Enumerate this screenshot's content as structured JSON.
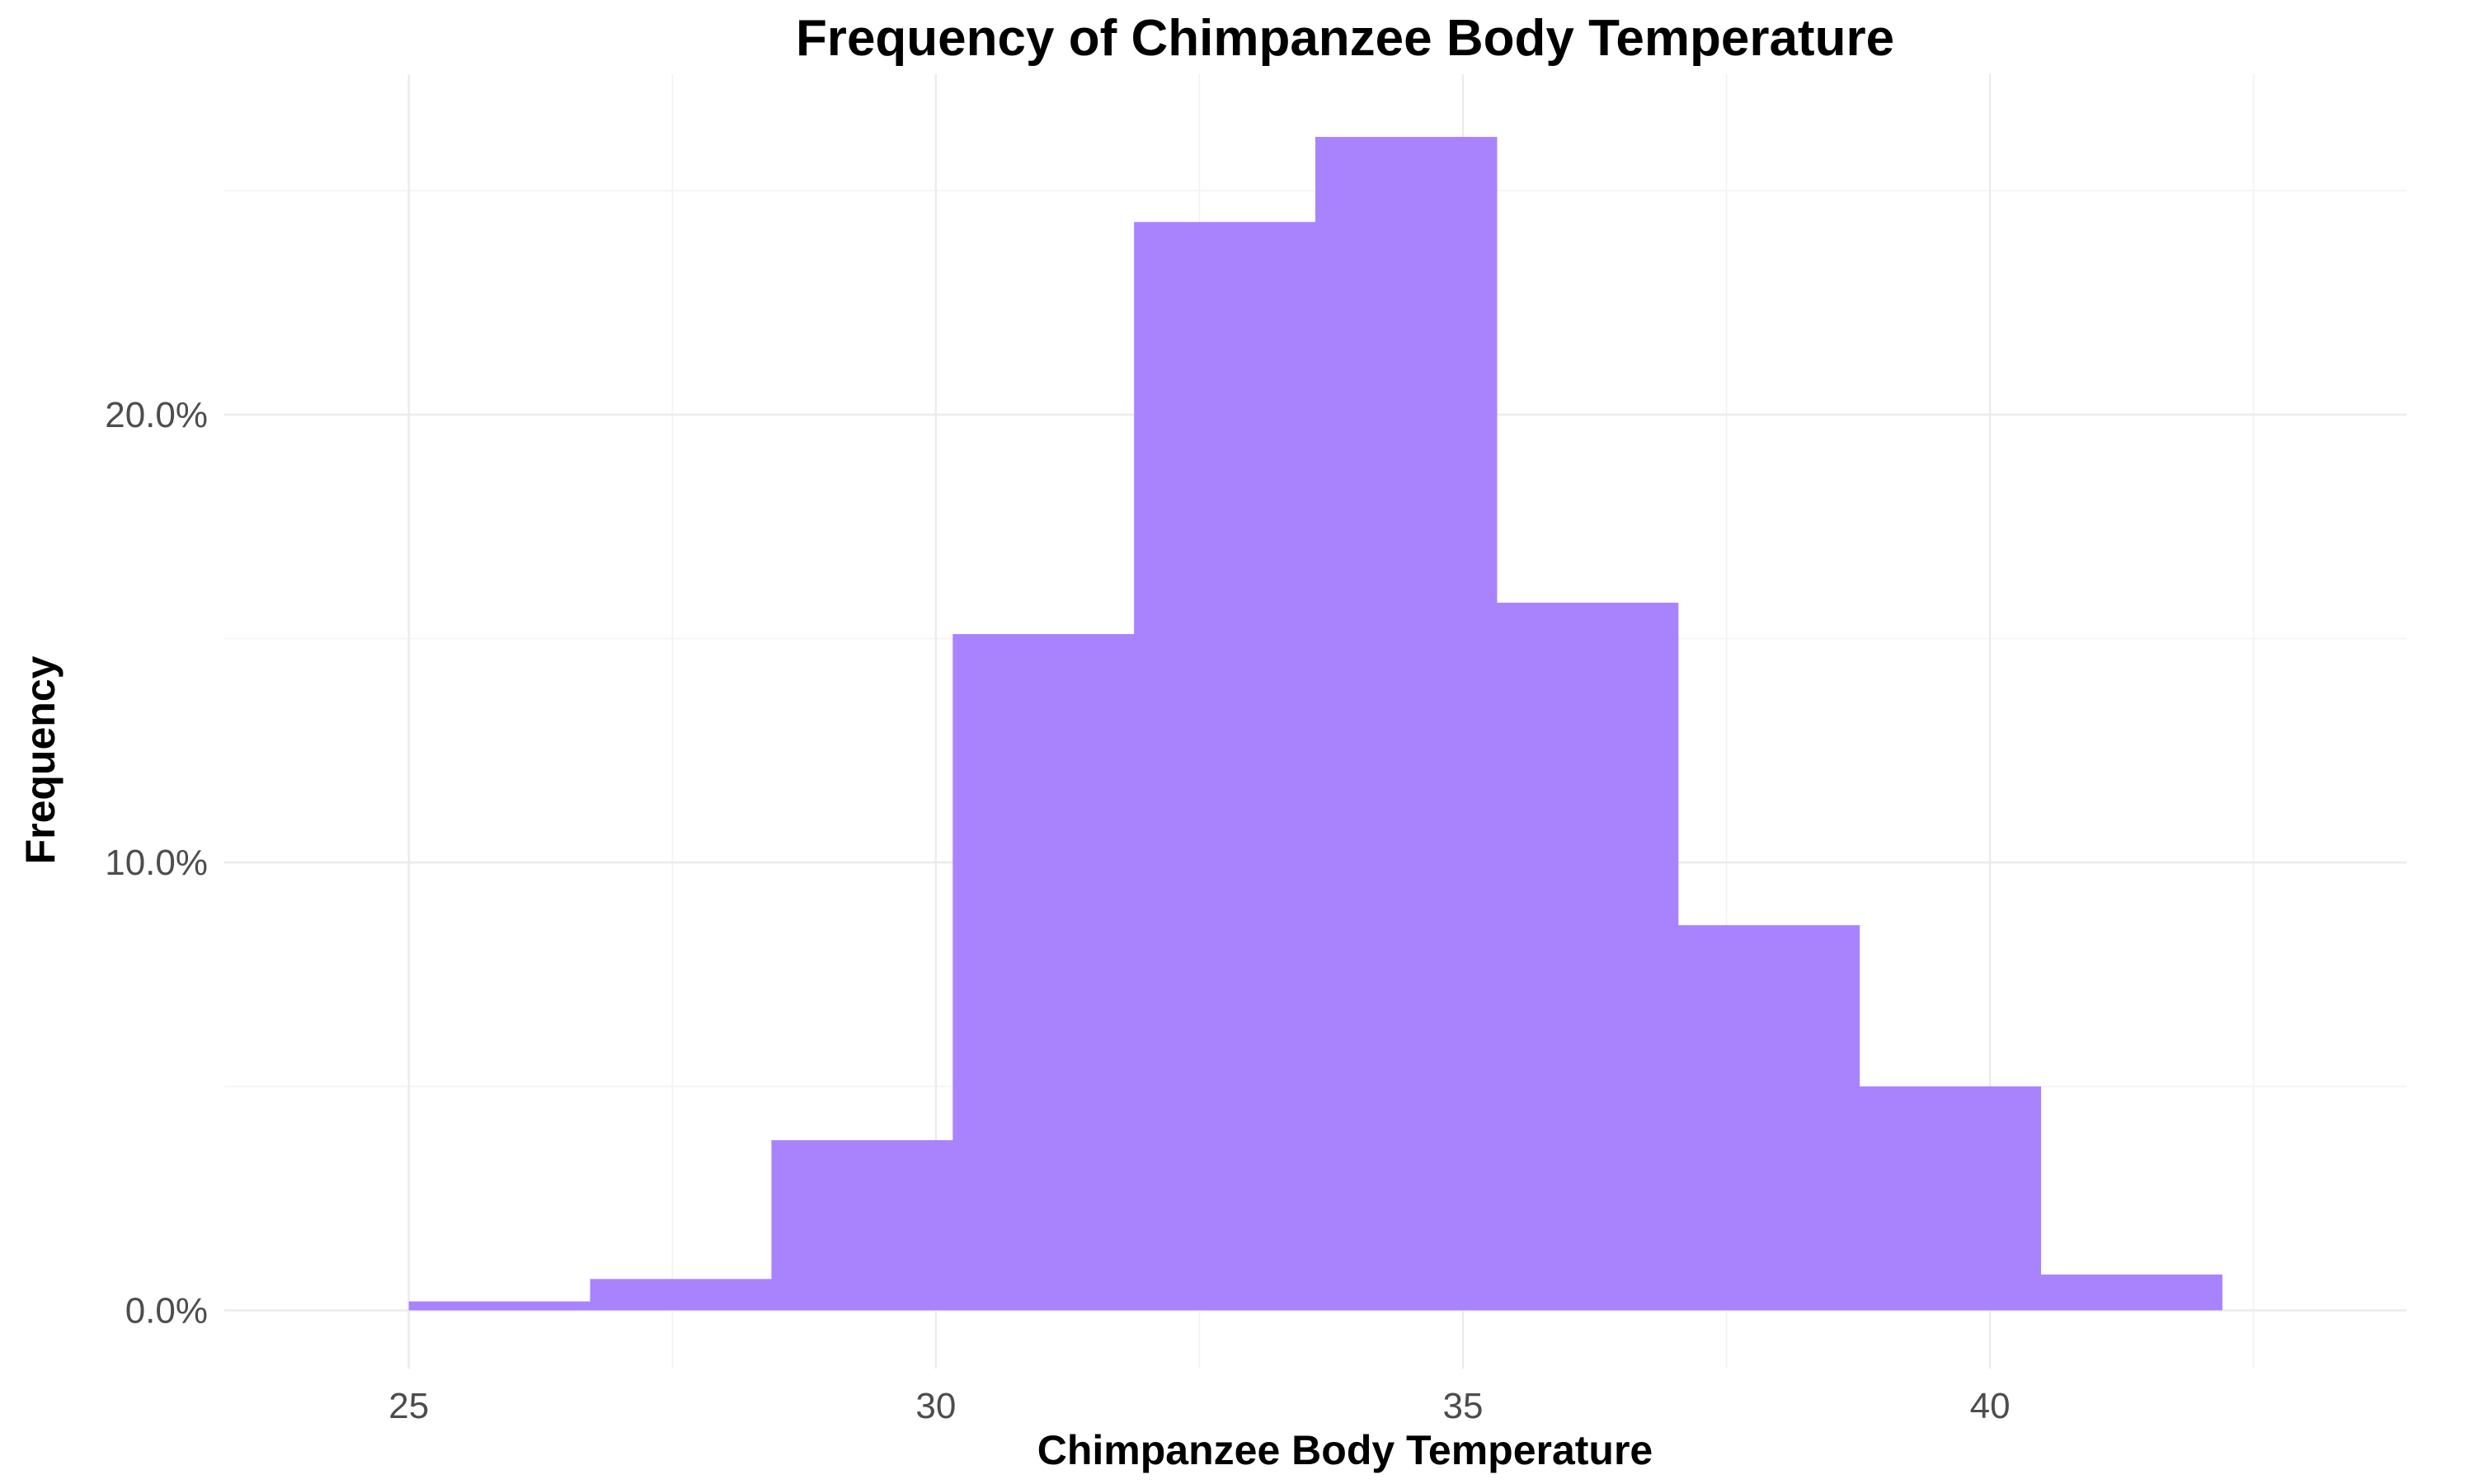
{
  "chart_data": {
    "type": "bar",
    "title": "Frequency of Chimpanzee Body Temperature",
    "xlabel": "Chimpanzee Body Temperature",
    "ylabel": "Frequency",
    "bar_color": "#a983fd",
    "bins": [
      {
        "x0": 25.0,
        "x1": 26.72,
        "value": 0.2
      },
      {
        "x0": 26.72,
        "x1": 28.44,
        "value": 0.7
      },
      {
        "x0": 28.44,
        "x1": 30.16,
        "value": 3.8
      },
      {
        "x0": 30.16,
        "x1": 31.88,
        "value": 15.1
      },
      {
        "x0": 31.88,
        "x1": 33.6,
        "value": 24.3
      },
      {
        "x0": 33.6,
        "x1": 35.32,
        "value": 26.2
      },
      {
        "x0": 35.32,
        "x1": 37.04,
        "value": 15.8
      },
      {
        "x0": 37.04,
        "x1": 38.76,
        "value": 8.6
      },
      {
        "x0": 38.76,
        "x1": 40.48,
        "value": 5.0
      },
      {
        "x0": 40.48,
        "x1": 42.2,
        "value": 0.8
      }
    ],
    "xlim": [
      23.25,
      43.95
    ],
    "ylim": [
      -1.3,
      27.6
    ],
    "x_ticks": [
      25,
      30,
      35,
      40
    ],
    "x_tick_labels": [
      "25",
      "30",
      "35",
      "40"
    ],
    "x_minor_ticks": [
      27.5,
      32.5,
      37.5,
      42.5
    ],
    "y_ticks": [
      0,
      10,
      20
    ],
    "y_tick_labels": [
      "0.0%",
      "10.0%",
      "20.0%"
    ],
    "y_minor_ticks": [
      5,
      15,
      25
    ],
    "grid": true,
    "legend": "none"
  }
}
